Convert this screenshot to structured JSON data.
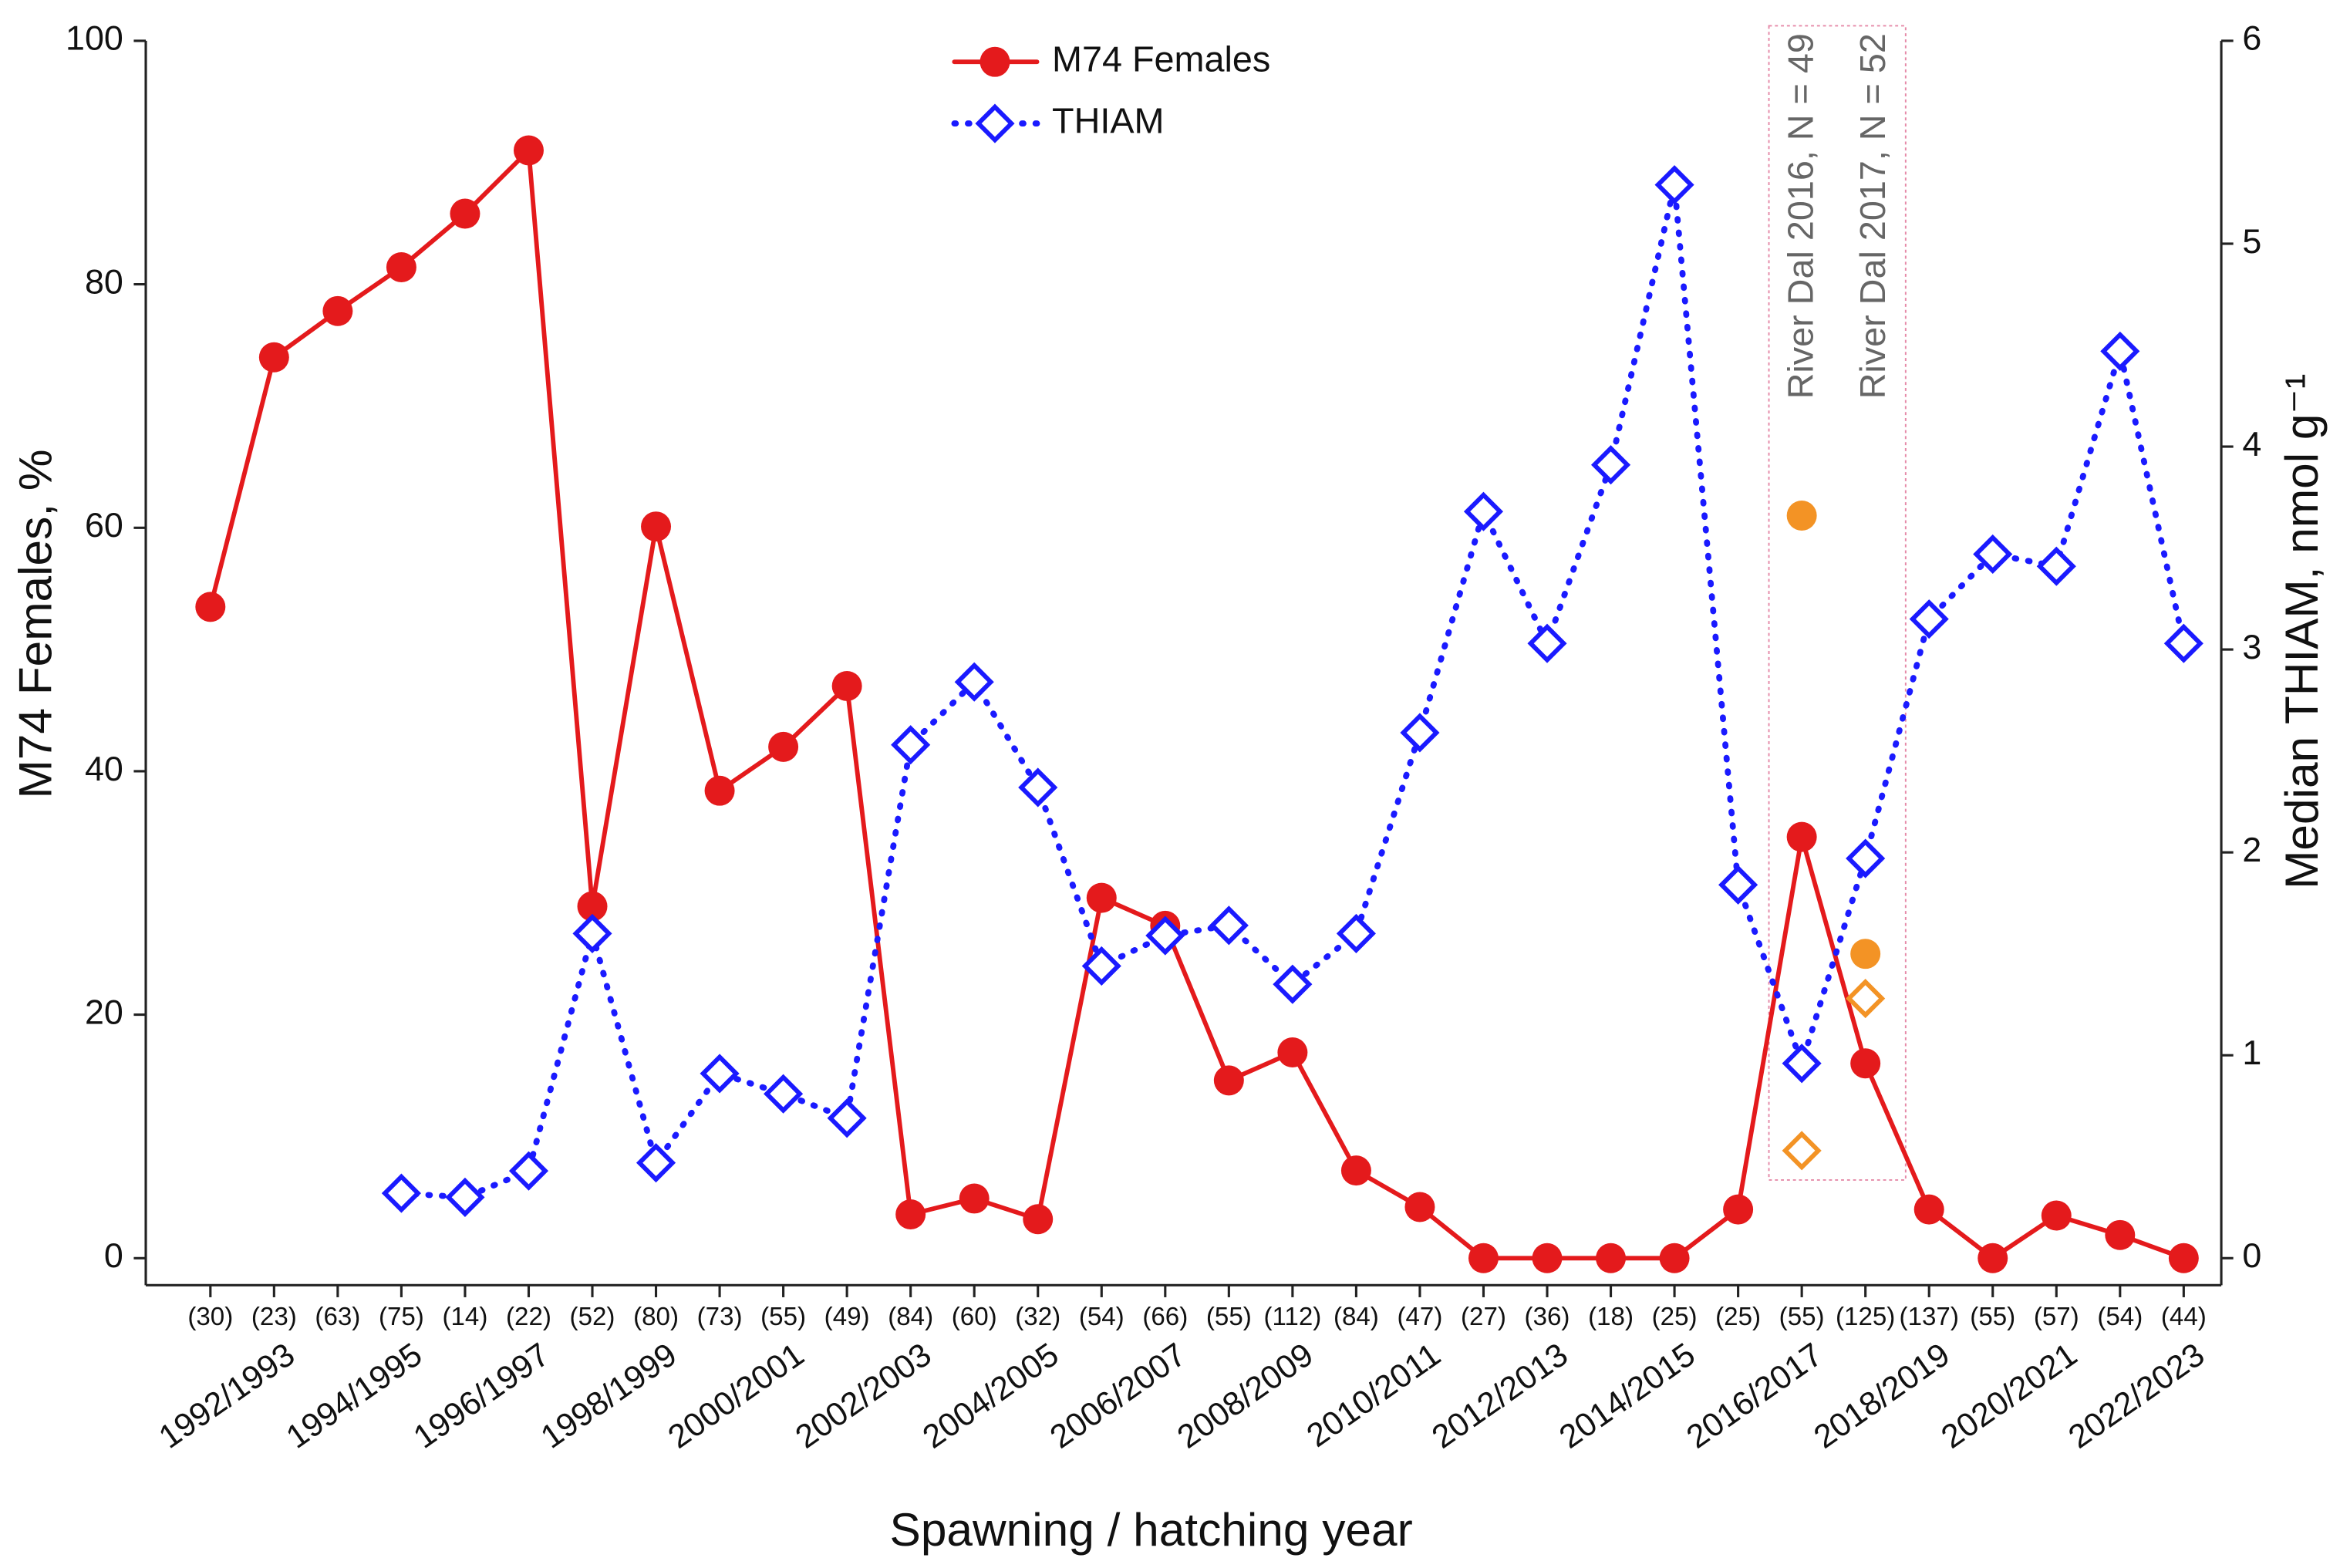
{
  "chart_data": {
    "type": "line",
    "x_label": "Spawning / hatching year",
    "y_label": "M74 Females, %",
    "y2_label": "Median THIAM, nmol g⁻¹",
    "categories": [
      null,
      "1992/1993",
      null,
      "1994/1995",
      null,
      "1996/1997",
      null,
      "1998/1999",
      null,
      "2000/2001",
      null,
      "2002/2003",
      null,
      "2004/2005",
      null,
      "2006/2007",
      null,
      "2008/2009",
      null,
      "2010/2011",
      null,
      "2012/2013",
      null,
      "2014/2015",
      null,
      "2016/2017",
      null,
      "2018/2019",
      null,
      "2020/2021",
      null,
      "2022/2023"
    ],
    "sample_sizes": [
      "(30)",
      "(23)",
      "(63)",
      "(75)",
      "(14)",
      "(22)",
      "(52)",
      "(80)",
      "(73)",
      "(55)",
      "(49)",
      "(84)",
      "(60)",
      "(32)",
      "(54)",
      "(66)",
      "(55)",
      "(112)",
      "(84)",
      "(47)",
      "(27)",
      "(36)",
      "(18)",
      "(25)",
      "(25)",
      "(55)",
      "(125)",
      "(137)",
      "(55)",
      "(57)",
      "(54)",
      "(44)"
    ],
    "series": [
      {
        "name": "M74 Females",
        "color": "#e41a1c",
        "marker": "circle",
        "line": "solid",
        "values": [
          53.5,
          74,
          77.8,
          81.4,
          85.8,
          91,
          28.9,
          60.1,
          38.4,
          42,
          47,
          3.6,
          4.9,
          3.2,
          29.6,
          27.3,
          14.6,
          16.9,
          7.2,
          4.2,
          0,
          0,
          0,
          0,
          4,
          34.6,
          16,
          4,
          0,
          3.5,
          1.9,
          0
        ]
      },
      {
        "name": "THIAM",
        "color": "#1a1aff",
        "marker": "diamond",
        "line": "dotted",
        "axis": "y2",
        "values": [
          null,
          null,
          null,
          0.32,
          0.3,
          0.43,
          1.6,
          0.47,
          0.91,
          0.81,
          0.69,
          2.53,
          2.84,
          2.32,
          1.44,
          1.59,
          1.64,
          1.35,
          1.6,
          2.59,
          3.68,
          3.03,
          3.91,
          5.29,
          1.84,
          0.96,
          1.97,
          3.15,
          3.47,
          3.41,
          4.47,
          3.03
        ]
      },
      {
        "color": "#f39325",
        "marker": "circle",
        "line": "none",
        "values": [
          null,
          null,
          null,
          null,
          null,
          null,
          null,
          null,
          null,
          null,
          null,
          null,
          null,
          null,
          null,
          null,
          null,
          null,
          null,
          null,
          null,
          null,
          null,
          null,
          null,
          61,
          25,
          null,
          null,
          null,
          null,
          null
        ]
      },
      {
        "color": "#f39325",
        "marker": "diamond",
        "line": "none",
        "axis": "y2",
        "values": [
          null,
          null,
          null,
          null,
          null,
          null,
          null,
          null,
          null,
          null,
          null,
          null,
          null,
          null,
          null,
          null,
          null,
          null,
          null,
          null,
          null,
          null,
          null,
          null,
          null,
          0.53,
          1.28,
          null,
          null,
          null,
          null,
          null
        ]
      }
    ],
    "annotations": [
      "River Dal 2016, N = 49",
      "River Dal 2017, N = 52"
    ],
    "ylim": [
      0,
      100
    ],
    "yticks": [
      0,
      20,
      40,
      60,
      80,
      100
    ],
    "y2lim": [
      0,
      6
    ],
    "y2ticks": [
      0,
      1,
      2,
      3,
      4,
      5,
      6
    ],
    "legend": "top"
  }
}
